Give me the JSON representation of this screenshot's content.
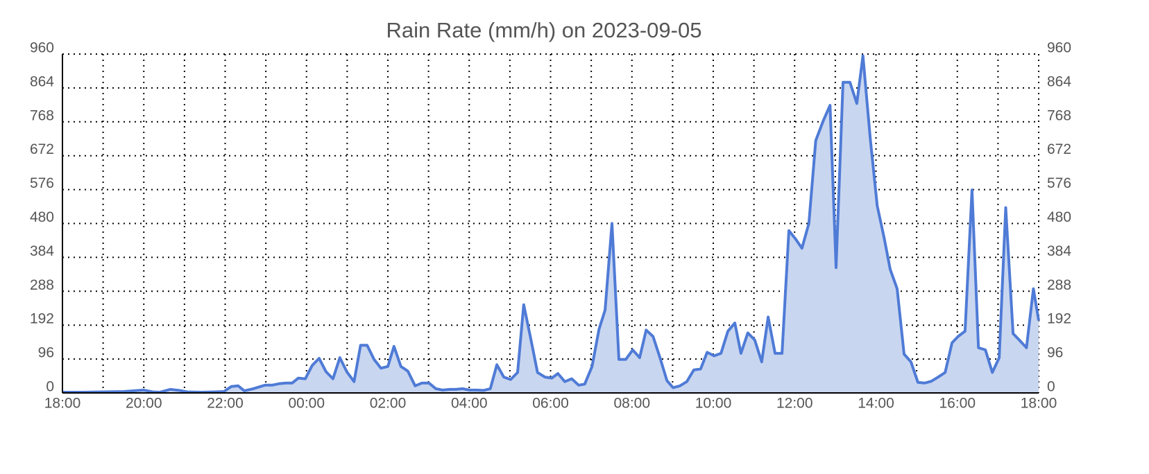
{
  "chart_data": {
    "type": "area",
    "title": "Rain Rate (mm/h) on 2023-09-05",
    "x": [
      0,
      0.5,
      1.0,
      1.5,
      2.0,
      2.22,
      2.39,
      2.65,
      2.87,
      3.07,
      3.41,
      3.75,
      3.97,
      4.15,
      4.32,
      4.47,
      4.69,
      4.98,
      5.15,
      5.32,
      5.49,
      5.65,
      5.8,
      5.97,
      6.14,
      6.31,
      6.48,
      6.65,
      6.82,
      6.99,
      7.17,
      7.33,
      7.49,
      7.66,
      7.83,
      8.0,
      8.15,
      8.32,
      8.49,
      8.67,
      8.84,
      9.01,
      9.18,
      9.35,
      9.52,
      9.67,
      9.84,
      10.01,
      10.18,
      10.35,
      10.52,
      10.68,
      10.85,
      11.02,
      11.19,
      11.34,
      11.51,
      11.68,
      11.86,
      12.03,
      12.18,
      12.35,
      12.52,
      12.69,
      12.84,
      13.02,
      13.19,
      13.34,
      13.51,
      13.68,
      13.85,
      14.02,
      14.19,
      14.35,
      14.52,
      14.69,
      14.86,
      15.01,
      15.18,
      15.35,
      15.52,
      15.69,
      15.85,
      16.02,
      16.19,
      16.36,
      16.53,
      16.68,
      16.85,
      17.02,
      17.19,
      17.35,
      17.52,
      17.69,
      17.86,
      18.03,
      18.18,
      18.35,
      18.52,
      18.7,
      18.87,
      19.02,
      19.19,
      19.36,
      19.53,
      19.68,
      19.86,
      20.03,
      20.2,
      20.35,
      20.52,
      20.69,
      20.86,
      21.03,
      21.2,
      21.36,
      21.53,
      21.7,
      21.87,
      22.02,
      22.19,
      22.36,
      22.52,
      22.69,
      22.86,
      23.03,
      23.19,
      23.37,
      23.54,
      23.7,
      23.87,
      24.0
    ],
    "values": [
      2,
      2,
      3,
      4,
      8,
      3,
      2,
      10,
      7,
      3,
      2,
      3,
      4,
      18,
      20,
      6,
      12,
      22,
      22,
      26,
      28,
      28,
      42,
      40,
      78,
      98,
      60,
      40,
      100,
      60,
      32,
      135,
      135,
      95,
      70,
      75,
      132,
      75,
      62,
      20,
      28,
      28,
      12,
      8,
      10,
      10,
      12,
      8,
      8,
      7,
      12,
      80,
      45,
      38,
      58,
      250,
      155,
      58,
      45,
      42,
      55,
      32,
      40,
      22,
      25,
      75,
      180,
      235,
      480,
      95,
      95,
      122,
      100,
      178,
      160,
      100,
      35,
      15,
      20,
      32,
      65,
      68,
      115,
      105,
      112,
      175,
      198,
      112,
      170,
      150,
      88,
      215,
      112,
      112,
      460,
      435,
      410,
      480,
      715,
      770,
      815,
      355,
      880,
      880,
      820,
      955,
      720,
      530,
      440,
      350,
      295,
      110,
      88,
      30,
      28,
      33,
      45,
      58,
      142,
      160,
      175,
      575,
      128,
      122,
      58,
      100,
      525,
      168,
      148,
      128,
      295,
      205
    ],
    "color": "#4f7bd6",
    "fill_color": "#c9d6f0",
    "xlim": [
      0,
      24
    ],
    "xticks": [
      {
        "value": 0,
        "label": "18:00"
      },
      {
        "value": 2,
        "label": "20:00"
      },
      {
        "value": 4,
        "label": "22:00"
      },
      {
        "value": 6,
        "label": "00:00"
      },
      {
        "value": 8,
        "label": "02:00"
      },
      {
        "value": 10,
        "label": "04:00"
      },
      {
        "value": 12,
        "label": "06:00"
      },
      {
        "value": 14,
        "label": "08:00"
      },
      {
        "value": 16,
        "label": "10:00"
      },
      {
        "value": 18,
        "label": "12:00"
      },
      {
        "value": 20,
        "label": "14:00"
      },
      {
        "value": 22,
        "label": "16:00"
      },
      {
        "value": 24,
        "label": "18:00"
      }
    ],
    "minor_xticks": [
      1,
      3,
      5,
      7,
      9,
      11,
      13,
      15,
      17,
      19,
      21,
      23
    ],
    "ylim": [
      0,
      960
    ],
    "yticks": [
      0,
      96,
      192,
      288,
      384,
      480,
      576,
      672,
      768,
      864,
      960
    ],
    "grid": true
  }
}
